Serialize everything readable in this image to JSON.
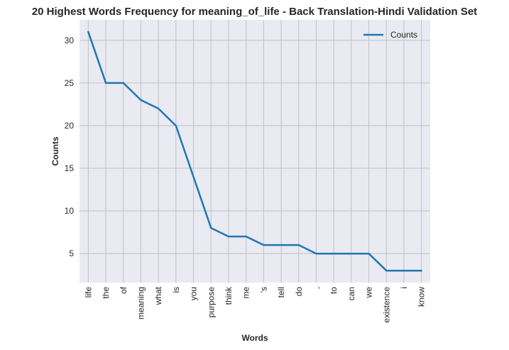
{
  "chart_data": {
    "type": "line",
    "title": "20 Highest Words Frequency for meaning_of_life - Back Translation-Hindi Validation Set",
    "xlabel": "Words",
    "ylabel": "Counts",
    "categories": [
      "life",
      "the",
      "of",
      "meaning",
      "what",
      "is",
      "you",
      "purpose",
      "think",
      "me",
      "'s",
      "tell",
      "do",
      ",",
      "to",
      "can",
      "we",
      "existence",
      "i",
      "know"
    ],
    "series": [
      {
        "name": "Counts",
        "values": [
          31,
          25,
          25,
          23,
          22,
          20,
          14,
          8,
          7,
          7,
          6,
          6,
          6,
          5,
          5,
          5,
          5,
          3,
          3,
          3
        ],
        "color": "#1f77b4"
      }
    ],
    "yticks": [
      5,
      10,
      15,
      20,
      25,
      30
    ],
    "ylim": [
      1.6,
      32.4
    ],
    "grid": true,
    "legend_position": "top-right",
    "background": "#eaeaf2",
    "grid_color": "#c0c0c8"
  }
}
